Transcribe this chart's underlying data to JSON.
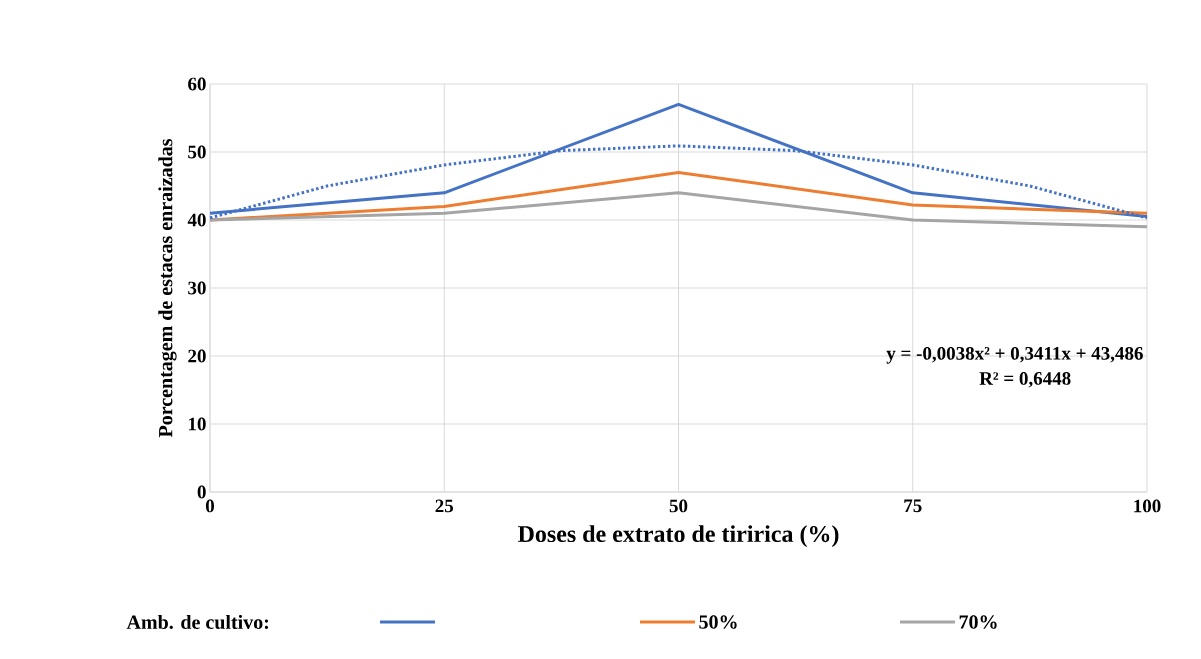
{
  "chart_data": {
    "type": "line",
    "xlabel": "Doses de extrato de tiririca  (%)",
    "ylabel": "Porcentagem de estacas enraizadas",
    "legend_title": "Amb. de cultivo:",
    "x": [
      0,
      25,
      50,
      75,
      100
    ],
    "series": [
      {
        "color": "#4472c4",
        "values": [
          41,
          44,
          57,
          44,
          40.5
        ]
      },
      {
        "name": "50%",
        "color": "#ed7d31",
        "values": [
          40,
          42,
          47,
          42.2,
          41
        ]
      },
      {
        "name": "70%",
        "color": "#a5a5a5",
        "values": [
          40,
          41,
          44,
          40,
          39
        ]
      },
      {
        "type": "line",
        "line_style": "dotted",
        "color": "#4472c4",
        "x": [
          0,
          12.5,
          25,
          37.5,
          50,
          62.5,
          75,
          87.5,
          100
        ],
        "values": [
          40.3,
          45,
          48.1,
          50.2,
          50.9,
          50.2,
          48.1,
          45,
          40.3
        ]
      }
    ],
    "xlim": [
      0,
      100
    ],
    "ylim": [
      0,
      60
    ],
    "xticks": [
      0,
      25,
      50,
      75,
      100
    ],
    "yticks": [
      0,
      10,
      20,
      30,
      40,
      50,
      60
    ],
    "grid": true,
    "legend": "bottom",
    "marker": "none",
    "line_style": "solid",
    "annotations": [
      "y = -0,0038x² + 0,3411x + 43,486",
      "R² = 0,6448"
    ]
  }
}
